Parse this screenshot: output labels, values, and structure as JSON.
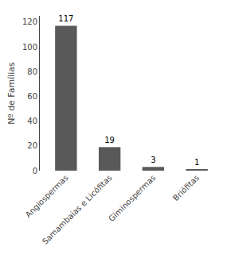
{
  "chart_data": {
    "type": "bar",
    "categories": [
      "Angiospermas",
      "Samambaias e Licófitas",
      "Giminospermas",
      "Briófitas"
    ],
    "values": [
      117,
      19,
      3,
      1
    ],
    "color": "#595959",
    "ylabel": "Nº de Famílias",
    "ylim": [
      0,
      125
    ],
    "yticks": [
      0,
      20,
      40,
      60,
      80,
      100,
      120
    ],
    "data_labels": true,
    "grid": false
  }
}
